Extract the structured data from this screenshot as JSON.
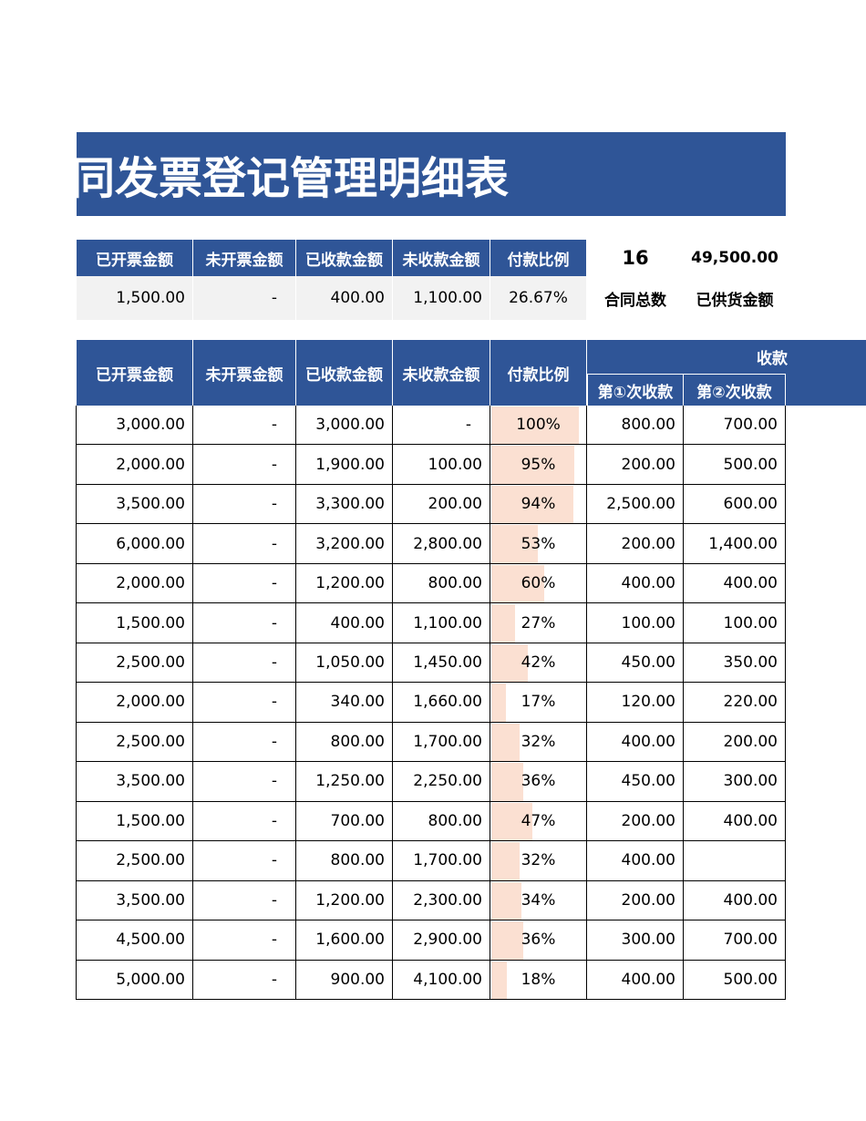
{
  "title": "同发票登记管理明细表",
  "summary": {
    "columns": [
      "已开票金额",
      "未开票金额",
      "已收款金额",
      "未收款金额",
      "付款比例"
    ],
    "row": [
      "1,500.00",
      "-",
      "400.00",
      "1,100.00",
      "26.67%"
    ]
  },
  "stats": [
    {
      "value": "16",
      "label": "合同总数"
    },
    {
      "value": "49,500.00",
      "label": "已供货金额"
    }
  ],
  "table": {
    "columns": [
      "已开票金额",
      "未开票金额",
      "已收款金额",
      "未收款金额",
      "付款比例"
    ],
    "group": "收款",
    "subcolumns": [
      "第①次收款",
      "第②次收款"
    ],
    "rows": [
      {
        "cells": [
          "3,000.00",
          "-",
          "3,000.00",
          "-"
        ],
        "ratio": {
          "value": 100,
          "label": "100%"
        },
        "payments": [
          "800.00",
          "700.00"
        ]
      },
      {
        "cells": [
          "2,000.00",
          "-",
          "1,900.00",
          "100.00"
        ],
        "ratio": {
          "value": 95,
          "label": "95%"
        },
        "payments": [
          "200.00",
          "500.00"
        ]
      },
      {
        "cells": [
          "3,500.00",
          "-",
          "3,300.00",
          "200.00"
        ],
        "ratio": {
          "value": 94,
          "label": "94%"
        },
        "payments": [
          "2,500.00",
          "600.00"
        ]
      },
      {
        "cells": [
          "6,000.00",
          "-",
          "3,200.00",
          "2,800.00"
        ],
        "ratio": {
          "value": 53,
          "label": "53%"
        },
        "payments": [
          "200.00",
          "1,400.00"
        ]
      },
      {
        "cells": [
          "2,000.00",
          "-",
          "1,200.00",
          "800.00"
        ],
        "ratio": {
          "value": 60,
          "label": "60%"
        },
        "payments": [
          "400.00",
          "400.00"
        ]
      },
      {
        "cells": [
          "1,500.00",
          "-",
          "400.00",
          "1,100.00"
        ],
        "ratio": {
          "value": 27,
          "label": "27%"
        },
        "payments": [
          "100.00",
          "100.00"
        ]
      },
      {
        "cells": [
          "2,500.00",
          "-",
          "1,050.00",
          "1,450.00"
        ],
        "ratio": {
          "value": 42,
          "label": "42%"
        },
        "payments": [
          "450.00",
          "350.00"
        ]
      },
      {
        "cells": [
          "2,000.00",
          "-",
          "340.00",
          "1,660.00"
        ],
        "ratio": {
          "value": 17,
          "label": "17%"
        },
        "payments": [
          "120.00",
          "220.00"
        ]
      },
      {
        "cells": [
          "2,500.00",
          "-",
          "800.00",
          "1,700.00"
        ],
        "ratio": {
          "value": 32,
          "label": "32%"
        },
        "payments": [
          "400.00",
          "200.00"
        ]
      },
      {
        "cells": [
          "3,500.00",
          "-",
          "1,250.00",
          "2,250.00"
        ],
        "ratio": {
          "value": 36,
          "label": "36%"
        },
        "payments": [
          "450.00",
          "300.00"
        ]
      },
      {
        "cells": [
          "1,500.00",
          "-",
          "700.00",
          "800.00"
        ],
        "ratio": {
          "value": 47,
          "label": "47%"
        },
        "payments": [
          "200.00",
          "400.00"
        ]
      },
      {
        "cells": [
          "2,500.00",
          "-",
          "800.00",
          "1,700.00"
        ],
        "ratio": {
          "value": 32,
          "label": "32%"
        },
        "payments": [
          "400.00",
          null
        ]
      },
      {
        "cells": [
          "3,500.00",
          "-",
          "1,200.00",
          "2,300.00"
        ],
        "ratio": {
          "value": 34,
          "label": "34%"
        },
        "payments": [
          "200.00",
          "400.00"
        ]
      },
      {
        "cells": [
          "4,500.00",
          "-",
          "1,600.00",
          "2,900.00"
        ],
        "ratio": {
          "value": 36,
          "label": "36%"
        },
        "payments": [
          "300.00",
          "700.00"
        ]
      },
      {
        "cells": [
          "5,000.00",
          "-",
          "900.00",
          "4,100.00"
        ],
        "ratio": {
          "value": 18,
          "label": "18%"
        },
        "payments": [
          "400.00",
          "500.00"
        ]
      }
    ]
  }
}
